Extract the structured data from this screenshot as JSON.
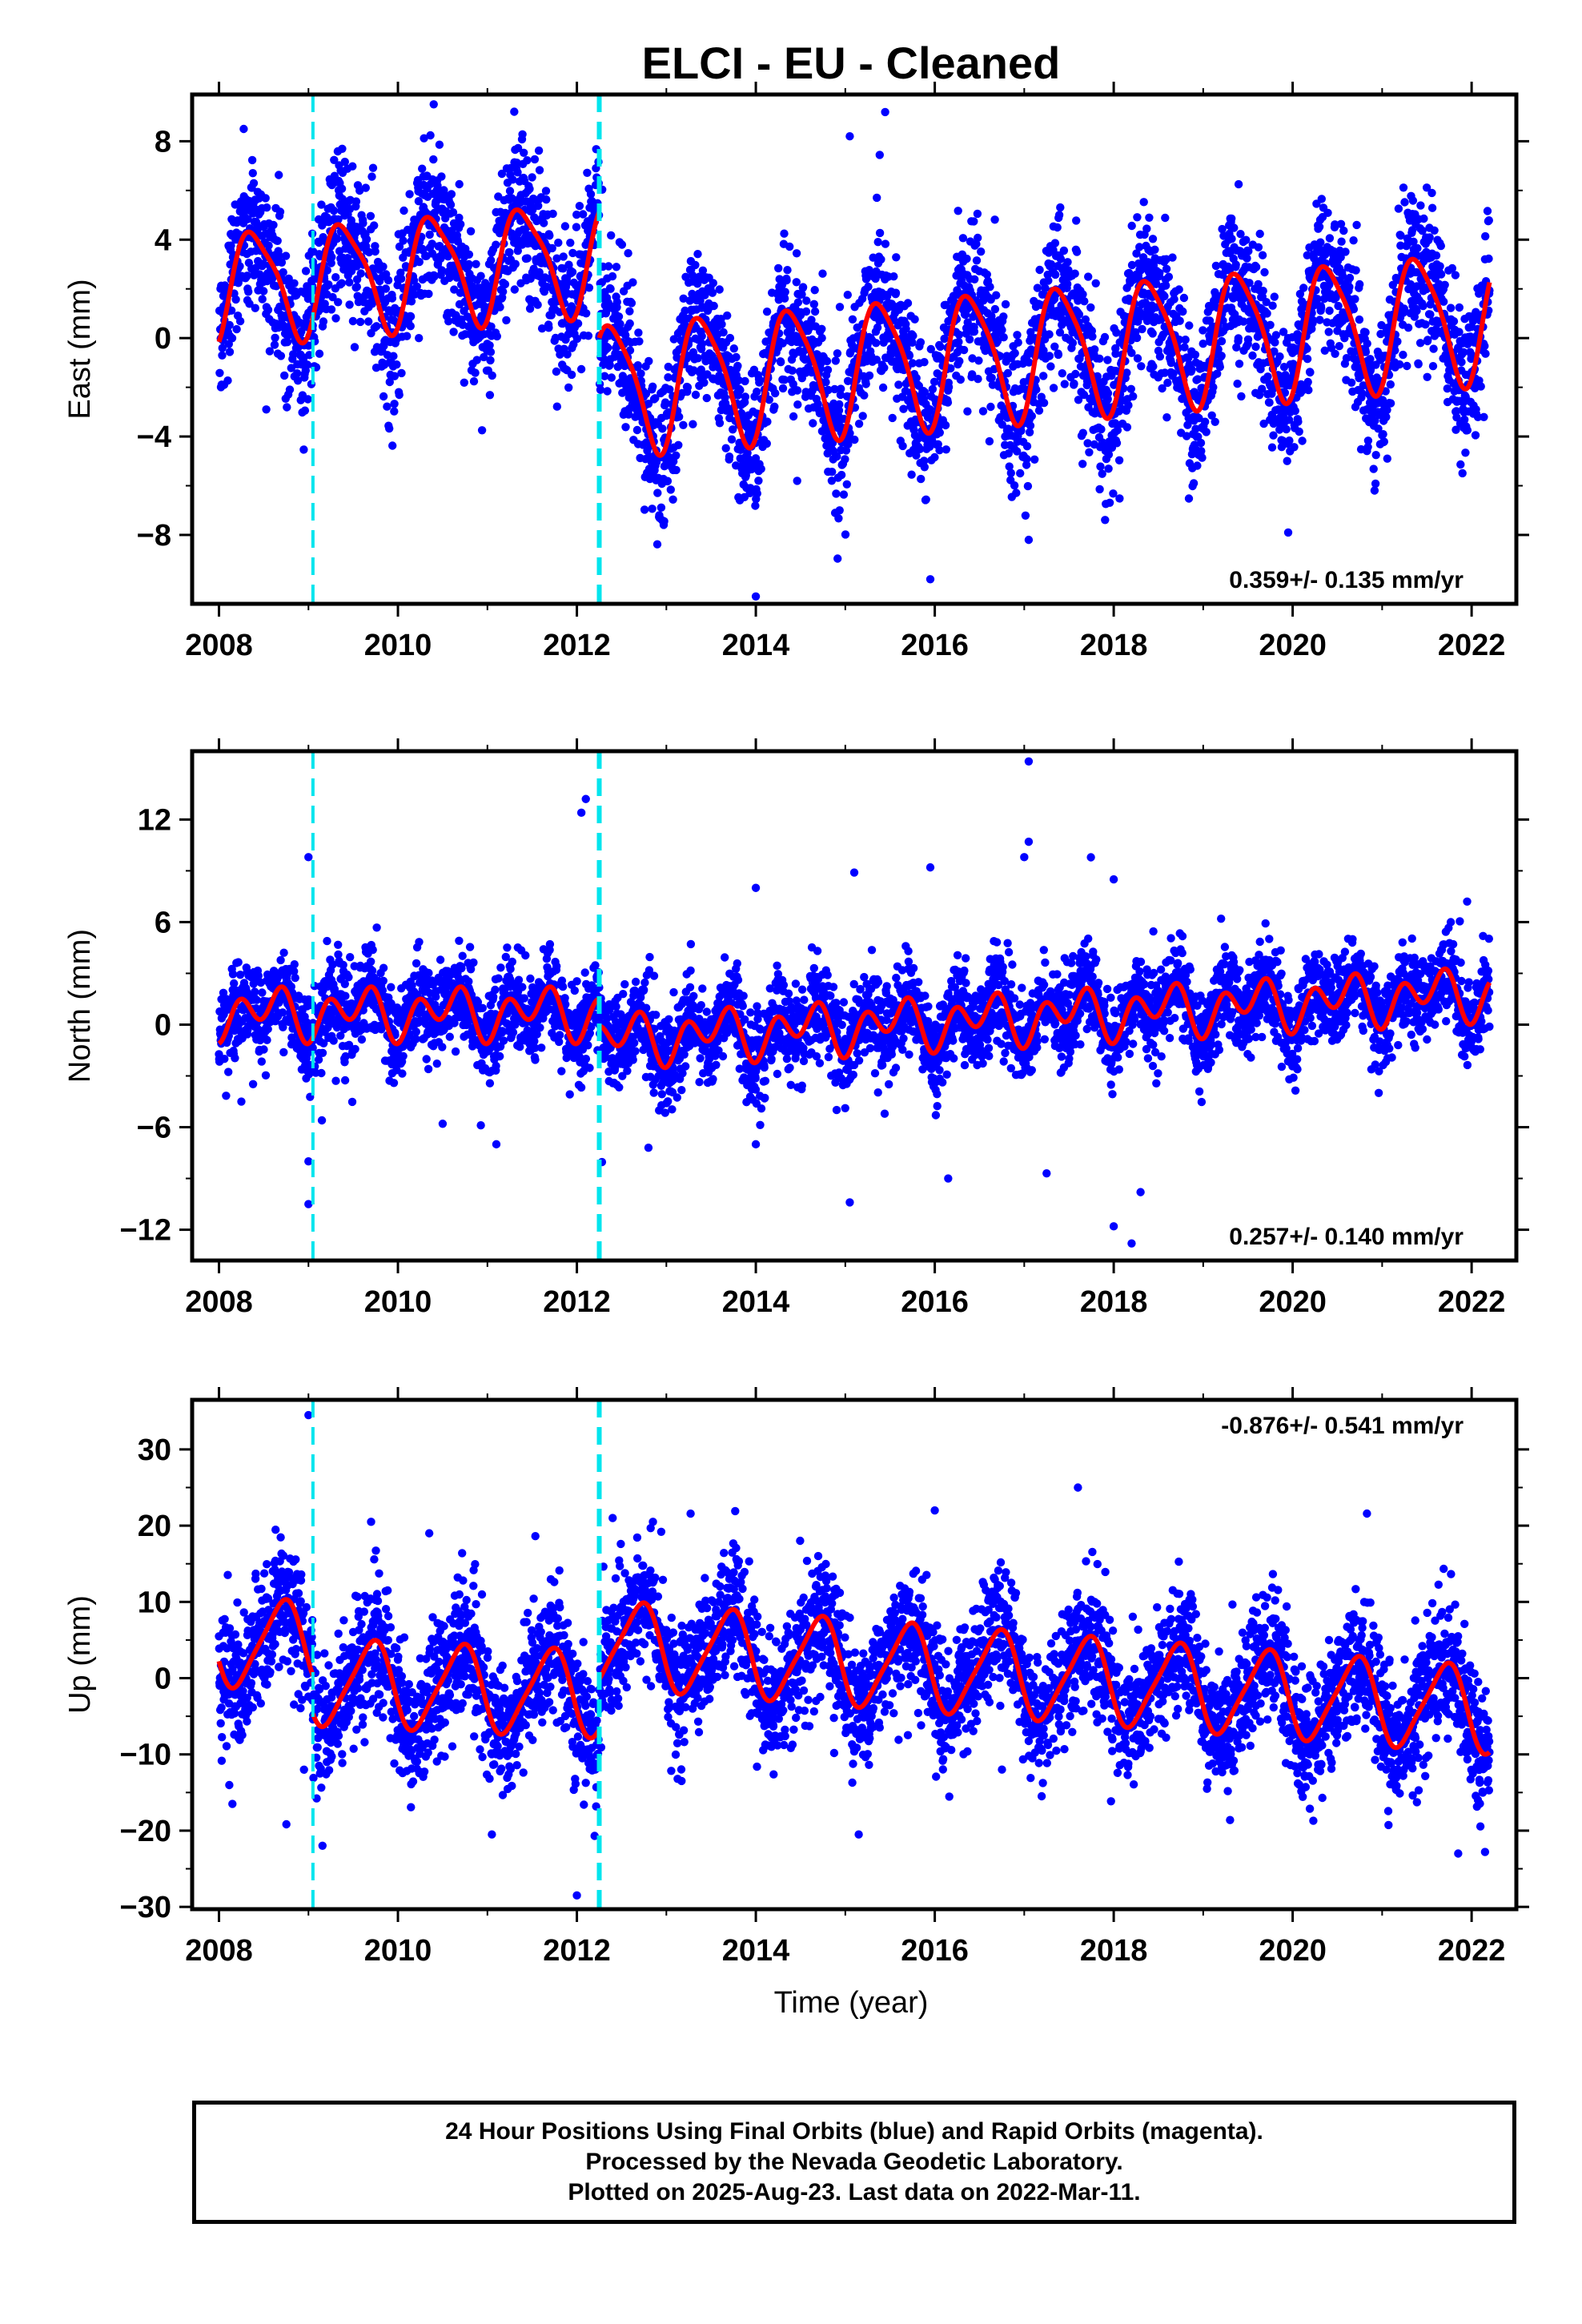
{
  "title": "ELCI  - EU - Cleaned",
  "xlabel": "Time (year)",
  "footer": {
    "line1": "24 Hour Positions Using Final Orbits (blue) and Rapid Orbits (magenta).",
    "line2": "Processed by the Nevada Geodetic Laboratory.",
    "line3": "Plotted on 2025-Aug-23. Last data on 2022-Mar-11."
  },
  "colors": {
    "points": "#0000ff",
    "model": "#ff0000",
    "steps": "#00e5ee",
    "frame": "#000000"
  },
  "chart_data": [
    {
      "type": "scatter",
      "component": "East",
      "ylabel": "East (mm)",
      "rate": "0.359+/- 0.135 mm/yr",
      "rate_position": "bottom-right",
      "xlim": [
        2007.7,
        2022.5
      ],
      "ylim": [
        -10.8,
        9.9
      ],
      "xticks": [
        2008,
        2010,
        2012,
        2014,
        2016,
        2018,
        2020,
        2022
      ],
      "yticks": [
        8,
        4,
        0,
        -4,
        -8
      ],
      "ytick_labels": [
        "8",
        "4",
        "0",
        "−4",
        "−8"
      ],
      "steps": [
        2009.05,
        2012.25
      ],
      "segments": [
        {
          "t0": 2008.0,
          "t1": 2012.25,
          "a": 2.1,
          "b": 0.3,
          "A1": 2.2,
          "ph1": 2008.15,
          "A2": 0.5,
          "ph2": 2008.1
        },
        {
          "t0": 2012.25,
          "t1": 2022.2,
          "a": -2.0,
          "b": 0.3,
          "A1": 2.6,
          "ph1": 2008.15,
          "A2": 0.5,
          "ph2": 2008.1
        }
      ],
      "noise": 1.5,
      "outliers": [
        [
          2015.05,
          8.2
        ],
        [
          2014.0,
          -10.5
        ],
        [
          2015.95,
          -9.8
        ],
        [
          2010.4,
          9.5
        ],
        [
          2011.3,
          9.2
        ],
        [
          2019.95,
          -7.9
        ],
        [
          2017.05,
          -8.2
        ]
      ]
    },
    {
      "type": "scatter",
      "component": "North",
      "ylabel": "North (mm)",
      "rate": "0.257+/- 0.140 mm/yr",
      "rate_position": "bottom-right",
      "xlim": [
        2007.7,
        2022.5
      ],
      "ylim": [
        -13.8,
        16.0
      ],
      "xticks": [
        2008,
        2010,
        2012,
        2014,
        2016,
        2018,
        2020,
        2022
      ],
      "yticks": [
        12,
        6,
        0,
        -6,
        -12
      ],
      "ytick_labels": [
        "12",
        "6",
        "0",
        "−6",
        "−12"
      ],
      "steps": [
        2009.05,
        2012.25
      ],
      "segments": [
        {
          "t0": 2008.0,
          "t1": 2012.25,
          "a": 0.7,
          "b": 0.0,
          "A1": 0.8,
          "ph1": 2008.3,
          "A2": 1.1,
          "ph2": 2008.1
        },
        {
          "t0": 2012.25,
          "t1": 2022.2,
          "a": -0.9,
          "b": 0.28,
          "A1": 0.8,
          "ph1": 2008.3,
          "A2": 1.1,
          "ph2": 2008.1
        }
      ],
      "noise": 1.3,
      "outliers": [
        [
          2017.05,
          15.4
        ],
        [
          2017.05,
          10.7
        ],
        [
          2017.0,
          9.8
        ],
        [
          2012.1,
          13.2
        ],
        [
          2012.05,
          12.4
        ],
        [
          2009.0,
          9.8
        ],
        [
          2015.1,
          8.9
        ],
        [
          2015.95,
          9.2
        ],
        [
          2014.0,
          8.0
        ],
        [
          2018.0,
          8.5
        ],
        [
          2019.2,
          6.2
        ],
        [
          2021.95,
          7.2
        ],
        [
          2009.0,
          -10.5
        ],
        [
          2009.0,
          -8.0
        ],
        [
          2018.0,
          -11.8
        ],
        [
          2018.3,
          -9.8
        ],
        [
          2018.2,
          -12.8
        ],
        [
          2015.05,
          -10.4
        ],
        [
          2014.0,
          -7.0
        ],
        [
          2011.1,
          -7.0
        ],
        [
          2012.8,
          -7.2
        ],
        [
          2016.15,
          -9.0
        ],
        [
          2008.25,
          -4.5
        ],
        [
          2010.5,
          -5.8
        ],
        [
          2017.25,
          -8.7
        ],
        [
          2009.15,
          -5.6
        ]
      ]
    },
    {
      "type": "scatter",
      "component": "Up",
      "ylabel": "Up (mm)",
      "rate": "-0.876+/- 0.541 mm/yr",
      "rate_position": "top-right",
      "xlim": [
        2007.7,
        2022.5
      ],
      "ylim": [
        -30.3,
        36.5
      ],
      "xticks": [
        2008,
        2010,
        2012,
        2014,
        2016,
        2018,
        2020,
        2022
      ],
      "yticks": [
        30,
        20,
        10,
        0,
        -10,
        -20,
        -30
      ],
      "ytick_labels": [
        "30",
        "20",
        "10",
        "0",
        "−10",
        "−20",
        "−30"
      ],
      "steps": [
        2009.05,
        2012.25
      ],
      "segments": [
        {
          "t0": 2008.0,
          "t1": 2009.05,
          "a": 4.5,
          "b": 0.0,
          "A1": 5.5,
          "ph1": 2008.45,
          "A2": 1.0,
          "ph2": 2008.2
        },
        {
          "t0": 2009.05,
          "t1": 2012.25,
          "a": -0.5,
          "b": -0.5,
          "A1": 5.5,
          "ph1": 2008.45,
          "A2": 1.0,
          "ph2": 2008.2
        },
        {
          "t0": 2012.25,
          "t1": 2022.2,
          "a": 4.5,
          "b": -0.876,
          "A1": 5.5,
          "ph1": 2008.45,
          "A2": 1.0,
          "ph2": 2008.2
        }
      ],
      "noise": 4.2,
      "outliers": [
        [
          2009.0,
          34.5
        ],
        [
          2017.6,
          25.0
        ],
        [
          2016.0,
          22.0
        ],
        [
          2012.4,
          21.0
        ],
        [
          2012.85,
          20.5
        ],
        [
          2009.7,
          20.5
        ],
        [
          2010.35,
          19.0
        ],
        [
          2012.0,
          -28.5
        ],
        [
          2008.15,
          -16.5
        ],
        [
          2011.05,
          -20.5
        ],
        [
          2022.15,
          -22.8
        ],
        [
          2021.85,
          -23.0
        ],
        [
          2015.15,
          -20.5
        ],
        [
          2008.95,
          -12.0
        ]
      ]
    }
  ]
}
